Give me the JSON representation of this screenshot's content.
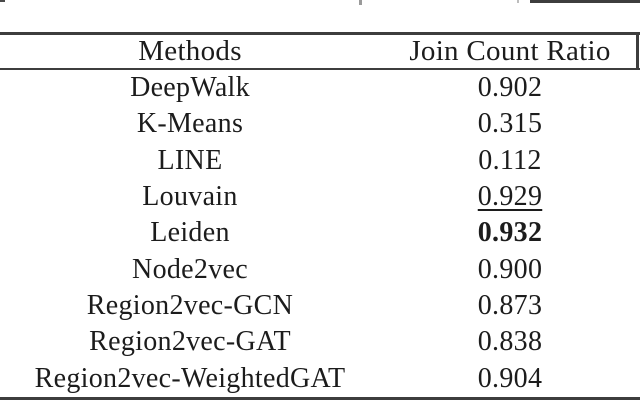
{
  "table": {
    "columns": [
      "Methods",
      "Join Count Ratio"
    ],
    "rows": [
      {
        "method": "DeepWalk",
        "value": "0.902",
        "style": "normal"
      },
      {
        "method": "K-Means",
        "value": "0.315",
        "style": "normal"
      },
      {
        "method": "LINE",
        "value": "0.112",
        "style": "normal"
      },
      {
        "method": "Louvain",
        "value": "0.929",
        "style": "underline"
      },
      {
        "method": "Leiden",
        "value": "0.932",
        "style": "bold"
      },
      {
        "method": "Node2vec",
        "value": "0.900",
        "style": "normal"
      },
      {
        "method": "Region2vec-GCN",
        "value": "0.873",
        "style": "normal"
      },
      {
        "method": "Region2vec-GAT",
        "value": "0.838",
        "style": "normal"
      },
      {
        "method": "Region2vec-WeightedGAT",
        "value": "0.904",
        "style": "normal"
      }
    ]
  },
  "colors": {
    "text": "#1c1c1c",
    "rule": "#3d3d3d",
    "background": "#ffffff"
  }
}
